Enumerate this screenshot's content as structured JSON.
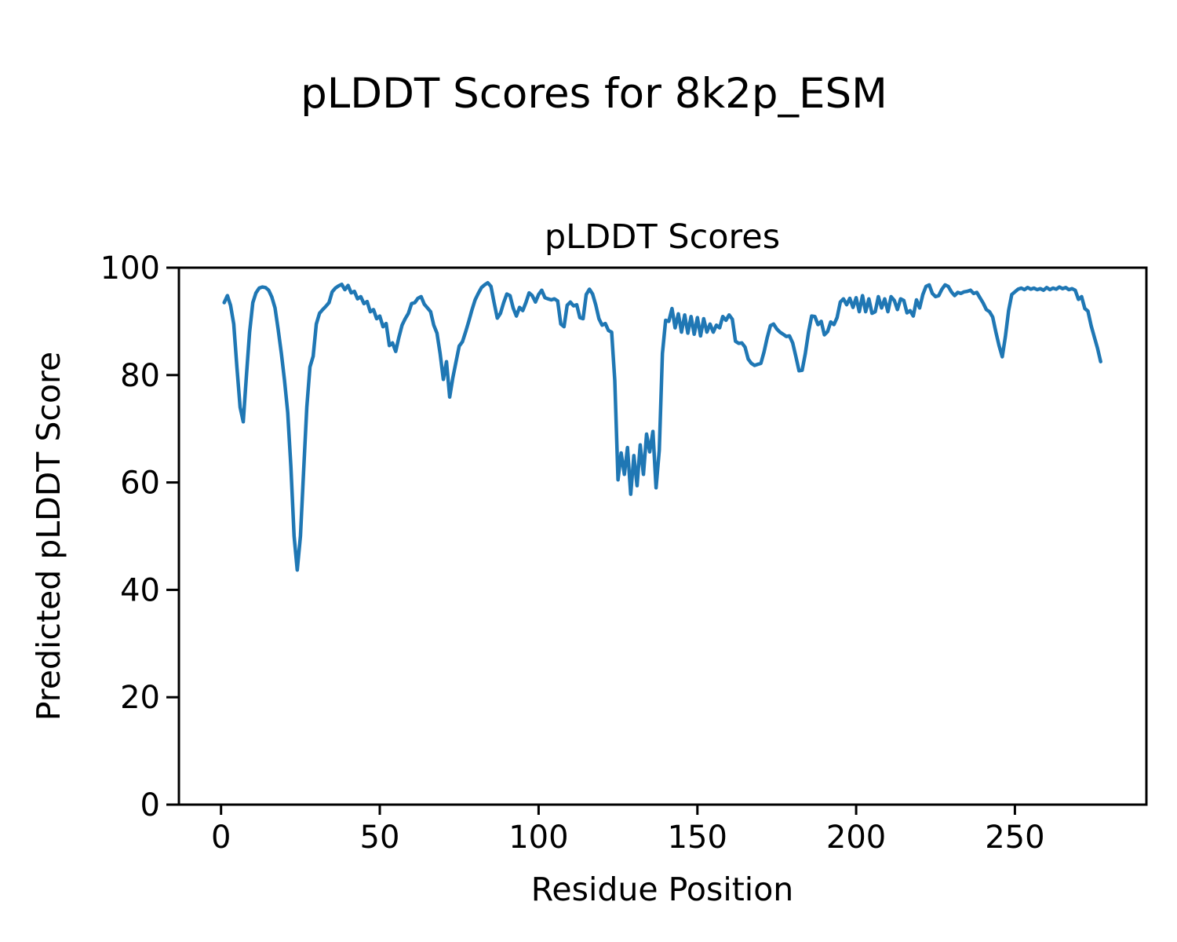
{
  "figure": {
    "suptitle": "pLDDT Scores for 8k2p_ESM",
    "background_color": "#ffffff",
    "text_color": "#000000"
  },
  "chart_data": {
    "type": "line",
    "title": "pLDDT Scores",
    "xlabel": "Residue Position",
    "ylabel": "Predicted pLDDT Score",
    "x_ticks": [
      0,
      50,
      100,
      150,
      200,
      250
    ],
    "y_ticks": [
      0,
      20,
      40,
      60,
      80,
      100
    ],
    "xlim": [
      -13.5,
      291.5
    ],
    "ylim": [
      0,
      100
    ],
    "grid": false,
    "legend": "none",
    "line_color": "#1f77b4",
    "series": [
      {
        "name": "pLDDT",
        "x_start": 1,
        "x_step": 1,
        "values": [
          93.5,
          94.8,
          93.0,
          89.5,
          81.5,
          74.0,
          71.3,
          80.0,
          88.0,
          93.5,
          95.3,
          96.2,
          96.4,
          96.3,
          95.8,
          94.5,
          92.5,
          88.5,
          84.0,
          79.0,
          73.0,
          63.0,
          50.0,
          43.7,
          50.0,
          62.0,
          74.0,
          81.5,
          83.5,
          89.5,
          91.5,
          92.2,
          92.8,
          93.5,
          95.5,
          96.2,
          96.6,
          96.9,
          95.9,
          96.7,
          95.3,
          95.6,
          94.2,
          94.6,
          93.3,
          93.7,
          91.8,
          92.2,
          90.5,
          91.0,
          89.0,
          89.6,
          85.5,
          86.0,
          84.4,
          87.0,
          89.3,
          90.5,
          91.5,
          93.3,
          93.5,
          94.3,
          94.6,
          93.2,
          92.5,
          91.8,
          89.3,
          87.8,
          84.0,
          79.2,
          82.5,
          75.9,
          79.5,
          82.5,
          85.4,
          86.2,
          88.0,
          90.0,
          92.1,
          94.0,
          95.2,
          96.3,
          96.8,
          97.2,
          96.5,
          93.5,
          90.6,
          91.5,
          93.5,
          95.1,
          94.8,
          92.5,
          91.0,
          92.6,
          92.0,
          93.5,
          95.3,
          94.8,
          93.6,
          95.0,
          95.8,
          94.4,
          94.2,
          94.0,
          94.2,
          93.8,
          89.5,
          89.0,
          93.0,
          93.6,
          92.9,
          93.1,
          90.7,
          90.5,
          95.0,
          96.0,
          95.1,
          93.1,
          90.5,
          89.3,
          89.6,
          88.3,
          88.0,
          79.0,
          60.5,
          65.5,
          61.5,
          66.5,
          57.8,
          65.0,
          59.4,
          67.0,
          61.5,
          69.0,
          65.7,
          69.5,
          59.0,
          66.0,
          84.0,
          90.2,
          90.0,
          92.4,
          88.8,
          91.4,
          88.0,
          91.2,
          87.8,
          90.9,
          87.6,
          90.7,
          87.3,
          90.5,
          88.0,
          89.5,
          88.0,
          89.3,
          88.8,
          90.9,
          90.2,
          91.2,
          90.4,
          86.3,
          85.9,
          86.0,
          85.2,
          83.0,
          82.2,
          81.8,
          82.0,
          82.2,
          84.3,
          87.0,
          89.2,
          89.5,
          88.6,
          88.0,
          87.6,
          87.2,
          87.3,
          86.0,
          83.5,
          80.8,
          80.9,
          84.0,
          88.0,
          91.0,
          90.9,
          89.4,
          90.0,
          87.5,
          88.1,
          89.9,
          89.4,
          90.7,
          93.6,
          94.2,
          93.1,
          94.3,
          92.6,
          94.4,
          91.8,
          94.8,
          91.8,
          94.2,
          91.5,
          91.8,
          94.6,
          92.5,
          94.2,
          91.8,
          94.6,
          93.9,
          92.2,
          94.2,
          93.9,
          91.6,
          92.0,
          91.0,
          94.0,
          92.5,
          95.0,
          96.5,
          96.8,
          95.2,
          94.6,
          94.8,
          96.0,
          96.8,
          96.5,
          95.5,
          94.8,
          95.4,
          95.2,
          95.5,
          95.6,
          95.8,
          95.2,
          95.4,
          94.4,
          93.4,
          92.2,
          91.8,
          90.8,
          88.0,
          85.5,
          83.4,
          87.2,
          92.0,
          95.0,
          95.5,
          96.0,
          96.2,
          95.9,
          96.3,
          96.0,
          96.2,
          95.9,
          96.1,
          95.8,
          96.3,
          95.9,
          96.2,
          96.0,
          96.4,
          96.1,
          96.3,
          95.9,
          96.1,
          95.8,
          94.1,
          94.6,
          92.4,
          91.9,
          89.2,
          87.1,
          85.0,
          82.5
        ]
      }
    ]
  }
}
